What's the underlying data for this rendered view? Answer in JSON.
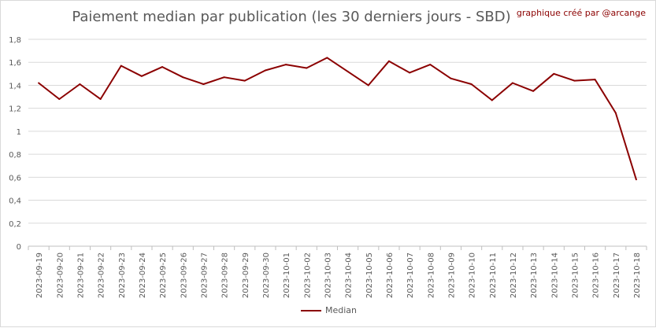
{
  "chart_data": {
    "type": "line",
    "title": "Paiement median par publication (les 30 derniers jours - SBD)",
    "credit": "graphique créé par @arcange",
    "xlabel": "",
    "ylabel": "",
    "ylim": [
      0,
      1.8
    ],
    "y_ticks": [
      "0",
      "0,2",
      "0,4",
      "0,6",
      "0,8",
      "1",
      "1,2",
      "1,4",
      "1,6",
      "1,8"
    ],
    "grid": true,
    "legend_position": "bottom",
    "categories": [
      "2023-09-19",
      "2023-09-20",
      "2023-09-21",
      "2023-09-22",
      "2023-09-23",
      "2023-09-24",
      "2023-09-25",
      "2023-09-26",
      "2023-09-27",
      "2023-09-28",
      "2023-09-29",
      "2023-09-30",
      "2023-10-01",
      "2023-10-02",
      "2023-10-03",
      "2023-10-04",
      "2023-10-05",
      "2023-10-06",
      "2023-10-07",
      "2023-10-08",
      "2023-10-09",
      "2023-10-10",
      "2023-10-11",
      "2023-10-12",
      "2023-10-13",
      "2023-10-14",
      "2023-10-15",
      "2023-10-16",
      "2023-10-17",
      "2023-10-18"
    ],
    "series": [
      {
        "name": "Median",
        "color": "#8b0000",
        "values": [
          1.42,
          1.28,
          1.41,
          1.28,
          1.57,
          1.48,
          1.56,
          1.47,
          1.41,
          1.47,
          1.44,
          1.53,
          1.58,
          1.55,
          1.64,
          1.52,
          1.4,
          1.61,
          1.51,
          1.58,
          1.46,
          1.41,
          1.27,
          1.42,
          1.35,
          1.5,
          1.44,
          1.45,
          1.16,
          0.58
        ]
      }
    ]
  }
}
